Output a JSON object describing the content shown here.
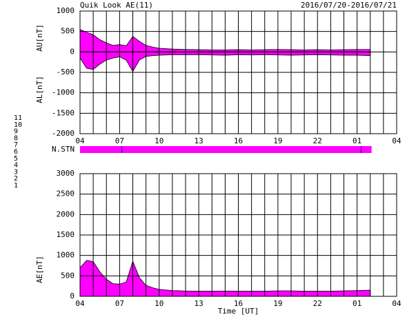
{
  "chart_data": [
    {
      "type": "area",
      "title": "Quik Look AE(11)",
      "subtitle": "2016/07/20-2016/07/21",
      "ylabels": [
        "AU[nT]",
        "AL[nT]"
      ],
      "x": [
        0,
        0.5,
        1,
        1.5,
        2,
        2.5,
        3,
        3.5,
        4,
        4.5,
        5,
        5.5,
        6,
        7,
        8,
        9,
        10,
        11,
        12,
        13,
        14,
        15,
        16,
        17,
        18,
        19,
        20,
        21,
        22
      ],
      "series": [
        {
          "color": "#ff00ff",
          "values": [
            550,
            480,
            420,
            300,
            220,
            160,
            180,
            150,
            380,
            260,
            160,
            120,
            90,
            70,
            60,
            55,
            50,
            50,
            55,
            50,
            55,
            60,
            55,
            50,
            55,
            50,
            55,
            60,
            60
          ]
        },
        {
          "color": "#ff00ff",
          "values": [
            -150,
            -400,
            -430,
            -300,
            -200,
            -150,
            -120,
            -200,
            -480,
            -200,
            -110,
            -90,
            -80,
            -70,
            -70,
            -70,
            -75,
            -80,
            -70,
            -75,
            -70,
            -75,
            -80,
            -75,
            -70,
            -75,
            -80,
            -80,
            -90
          ]
        }
      ],
      "xlim": [
        0,
        24
      ],
      "ylim": [
        -2000,
        1000
      ],
      "yticks": [
        1000,
        500,
        0,
        -500,
        -1000,
        -1500,
        -2000
      ],
      "xticks": [
        {
          "value": 0,
          "label": "04"
        },
        {
          "value": 3,
          "label": "07"
        },
        {
          "value": 6,
          "label": "10"
        },
        {
          "value": 9,
          "label": "13"
        },
        {
          "value": 12,
          "label": "16"
        },
        {
          "value": 15,
          "label": "19"
        },
        {
          "value": 18,
          "label": "22"
        },
        {
          "value": 21,
          "label": "01"
        },
        {
          "value": 24,
          "label": "04"
        }
      ],
      "xgrid": [
        0,
        1,
        2,
        3,
        4,
        5,
        6,
        7,
        8,
        9,
        10,
        11,
        12,
        13,
        14,
        15,
        16,
        17,
        18,
        19,
        20,
        21,
        22,
        23,
        24
      ]
    },
    {
      "type": "timeline",
      "label": "N.STN",
      "start": 0,
      "end": 22.1,
      "color": "#ff00ff",
      "markers": [
        3.17,
        21.3
      ],
      "marker_color": "#0000a0",
      "legend": [
        {
          "label": "11",
          "color": "#00e0e0"
        },
        {
          "label": "10",
          "color": "#ff00ff"
        },
        {
          "label": "9",
          "color": "#2020c0"
        },
        {
          "label": "8",
          "color": "#e8e070"
        },
        {
          "label": "7",
          "color": "#b0d040"
        },
        {
          "label": "6",
          "color": "#e00000"
        },
        {
          "label": "5",
          "color": "#c0c0c0"
        },
        {
          "label": "4",
          "color": "#a0a0c0"
        },
        {
          "label": "3",
          "color": "#008080"
        },
        {
          "label": "2",
          "color": "#a000a0"
        },
        {
          "label": "1",
          "color": "#0000e0"
        }
      ]
    },
    {
      "type": "area",
      "ylabels": [
        "AE[nT]"
      ],
      "xlabel": "Time [UT]",
      "x": [
        0,
        0.5,
        1,
        1.5,
        2,
        2.5,
        3,
        3.5,
        4,
        4.5,
        5,
        5.5,
        6,
        7,
        8,
        9,
        10,
        11,
        12,
        13,
        14,
        15,
        16,
        17,
        18,
        19,
        20,
        21,
        22
      ],
      "series": [
        {
          "color": "#ff00ff",
          "values": [
            700,
            880,
            850,
            600,
            420,
            310,
            300,
            350,
            860,
            460,
            270,
            210,
            170,
            140,
            130,
            125,
            125,
            130,
            125,
            125,
            125,
            135,
            135,
            125,
            125,
            125,
            135,
            140,
            150
          ]
        }
      ],
      "xlim": [
        0,
        24
      ],
      "ylim": [
        0,
        3000
      ],
      "yticks": [
        3000,
        2500,
        2000,
        1500,
        1000,
        500,
        0
      ],
      "xticks": [
        {
          "value": 0,
          "label": "04"
        },
        {
          "value": 3,
          "label": "07"
        },
        {
          "value": 6,
          "label": "10"
        },
        {
          "value": 9,
          "label": "13"
        },
        {
          "value": 12,
          "label": "16"
        },
        {
          "value": 15,
          "label": "19"
        },
        {
          "value": 18,
          "label": "22"
        },
        {
          "value": 21,
          "label": "01"
        },
        {
          "value": 24,
          "label": "04"
        }
      ],
      "xgrid": [
        0,
        1,
        2,
        3,
        4,
        5,
        6,
        7,
        8,
        9,
        10,
        11,
        12,
        13,
        14,
        15,
        16,
        17,
        18,
        19,
        20,
        21,
        22,
        23,
        24
      ]
    }
  ]
}
